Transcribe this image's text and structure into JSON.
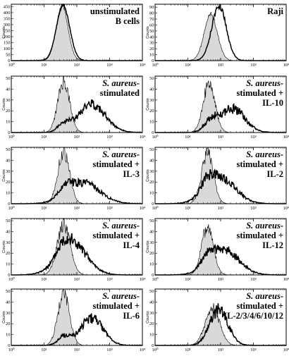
{
  "figure": {
    "y_axis_label": "Counts",
    "x_ticks": [
      "10⁰",
      "10¹",
      "10²",
      "10³",
      "10⁴"
    ],
    "colors": {
      "isotype_fill": "#d9d9d9",
      "line": "#000000",
      "background": "#ffffff"
    }
  },
  "chart_data": [
    {
      "type": "area",
      "panel": 1,
      "label_lines": [
        {
          "text": "unstimulated",
          "italic": false
        },
        {
          "text": "B cells",
          "italic": false
        }
      ],
      "y_ticks": [
        "0",
        "50",
        "100",
        "150",
        "200",
        "250",
        "300",
        "350",
        "400",
        "450"
      ],
      "ylim": [
        0,
        470
      ],
      "xlim": [
        0,
        4
      ],
      "x_scale": "log",
      "series": [
        {
          "role": "isotype-filled",
          "mu": 1.55,
          "sigma": 0.18,
          "peak": 460,
          "noise": 0.03
        },
        {
          "role": "stained-outline",
          "mu": 1.58,
          "sigma": 0.2,
          "peak": 465,
          "noise": 0.03
        }
      ]
    },
    {
      "type": "area",
      "panel": 2,
      "label_lines": [
        {
          "text": "Raji",
          "italic": false
        }
      ],
      "y_ticks": [
        "0",
        "10",
        "20",
        "30",
        "40",
        "50",
        "60",
        "70",
        "80",
        "90"
      ],
      "ylim": [
        0,
        95
      ],
      "xlim": [
        0,
        4
      ],
      "x_scale": "log",
      "series": [
        {
          "role": "isotype-filled",
          "mu": 1.7,
          "sigma": 0.2,
          "peak": 78,
          "noise": 0.06
        },
        {
          "role": "stained-outline",
          "mu": 1.95,
          "sigma": 0.22,
          "peak": 93,
          "noise": 0.06
        }
      ]
    },
    {
      "type": "area",
      "panel": 3,
      "label_lines": [
        {
          "text": "S. aureus-",
          "italic": true
        },
        {
          "text": "stimulated",
          "italic": false
        }
      ],
      "y_ticks": [
        "0",
        "10",
        "20",
        "30",
        "40",
        "50"
      ],
      "ylim": [
        0,
        52
      ],
      "xlim": [
        0,
        4
      ],
      "x_scale": "log",
      "series": [
        {
          "role": "isotype-filled",
          "mu": 1.6,
          "sigma": 0.18,
          "peak": 47,
          "noise": 0.15
        },
        {
          "role": "stained-outline",
          "mu": 2.45,
          "sigma": 0.42,
          "peak": 26,
          "noise": 0.18,
          "shoulder_mu": 1.6,
          "shoulder_sigma": 0.18,
          "shoulder_peak": 7
        }
      ]
    },
    {
      "type": "area",
      "panel": 4,
      "label_lines": [
        {
          "text": "S. aureus-",
          "italic": true
        },
        {
          "text": "stimulated +",
          "italic": false
        },
        {
          "text": "IL-10",
          "italic": false
        }
      ],
      "y_ticks": [
        "0",
        "10",
        "20",
        "30",
        "40",
        "50"
      ],
      "ylim": [
        0,
        52
      ],
      "xlim": [
        0,
        4
      ],
      "x_scale": "log",
      "series": [
        {
          "role": "isotype-filled",
          "mu": 1.65,
          "sigma": 0.18,
          "peak": 46,
          "noise": 0.15
        },
        {
          "role": "stained-outline",
          "mu": 2.35,
          "sigma": 0.38,
          "peak": 22,
          "noise": 0.22,
          "shoulder_mu": 1.7,
          "shoulder_sigma": 0.2,
          "shoulder_peak": 9
        }
      ]
    },
    {
      "type": "area",
      "panel": 5,
      "label_lines": [
        {
          "text": "S. aureus-",
          "italic": true
        },
        {
          "text": "stimulated +",
          "italic": false
        },
        {
          "text": "IL-3",
          "italic": false
        }
      ],
      "y_ticks": [
        "0",
        "10",
        "20",
        "30",
        "40",
        "50"
      ],
      "ylim": [
        0,
        52
      ],
      "xlim": [
        0,
        4
      ],
      "x_scale": "log",
      "series": [
        {
          "role": "isotype-filled",
          "mu": 1.6,
          "sigma": 0.18,
          "peak": 48,
          "noise": 0.15
        },
        {
          "role": "stained-outline",
          "mu": 2.2,
          "sigma": 0.5,
          "peak": 19,
          "noise": 0.2,
          "shoulder_mu": 1.65,
          "shoulder_sigma": 0.2,
          "shoulder_peak": 8
        }
      ]
    },
    {
      "type": "area",
      "panel": 6,
      "label_lines": [
        {
          "text": "S. aureus-",
          "italic": true
        },
        {
          "text": "stimulated +",
          "italic": false
        },
        {
          "text": "IL-2",
          "italic": false
        }
      ],
      "y_ticks": [
        "0",
        "10",
        "20",
        "30",
        "40",
        "50"
      ],
      "ylim": [
        0,
        52
      ],
      "xlim": [
        0,
        4
      ],
      "x_scale": "log",
      "series": [
        {
          "role": "isotype-filled",
          "mu": 1.6,
          "sigma": 0.18,
          "peak": 46,
          "noise": 0.15
        },
        {
          "role": "stained-outline",
          "mu": 2.0,
          "sigma": 0.45,
          "peak": 24,
          "noise": 0.2,
          "shoulder_mu": 1.6,
          "shoulder_sigma": 0.2,
          "shoulder_peak": 10
        }
      ]
    },
    {
      "type": "area",
      "panel": 7,
      "label_lines": [
        {
          "text": "S. aureus-",
          "italic": true
        },
        {
          "text": "stimulated +",
          "italic": false
        },
        {
          "text": "IL-4",
          "italic": false
        }
      ],
      "y_ticks": [
        "0",
        "10",
        "20",
        "30",
        "40",
        "50"
      ],
      "ylim": [
        0,
        52
      ],
      "xlim": [
        0,
        4
      ],
      "x_scale": "log",
      "series": [
        {
          "role": "isotype-filled",
          "mu": 1.6,
          "sigma": 0.2,
          "peak": 46,
          "noise": 0.15
        },
        {
          "role": "stained-outline",
          "mu": 1.85,
          "sigma": 0.45,
          "peak": 29,
          "noise": 0.2,
          "shoulder_mu": 1.6,
          "shoulder_sigma": 0.18,
          "shoulder_peak": 8
        }
      ]
    },
    {
      "type": "area",
      "panel": 8,
      "label_lines": [
        {
          "text": "S. aureus-",
          "italic": true
        },
        {
          "text": "stimulated +",
          "italic": false
        },
        {
          "text": "IL-12",
          "italic": false
        }
      ],
      "y_ticks": [
        "0",
        "10",
        "20",
        "30",
        "40",
        "50"
      ],
      "ylim": [
        0,
        52
      ],
      "xlim": [
        0,
        4
      ],
      "x_scale": "log",
      "series": [
        {
          "role": "isotype-filled",
          "mu": 1.6,
          "sigma": 0.18,
          "peak": 44,
          "noise": 0.15
        },
        {
          "role": "stained-outline",
          "mu": 2.1,
          "sigma": 0.45,
          "peak": 23,
          "noise": 0.2,
          "shoulder_mu": 1.6,
          "shoulder_sigma": 0.2,
          "shoulder_peak": 9
        }
      ]
    },
    {
      "type": "area",
      "panel": 9,
      "label_lines": [
        {
          "text": "S. aureus-",
          "italic": true
        },
        {
          "text": "stimulated +",
          "italic": false
        },
        {
          "text": "IL-6",
          "italic": false
        }
      ],
      "y_ticks": [
        "0",
        "10",
        "20",
        "30",
        "40",
        "50"
      ],
      "ylim": [
        0,
        52
      ],
      "xlim": [
        0,
        4
      ],
      "x_scale": "log",
      "series": [
        {
          "role": "isotype-filled",
          "mu": 1.6,
          "sigma": 0.18,
          "peak": 47,
          "noise": 0.15
        },
        {
          "role": "stained-outline",
          "mu": 2.45,
          "sigma": 0.35,
          "peak": 25,
          "noise": 0.2,
          "shoulder_mu": 1.6,
          "shoulder_sigma": 0.18,
          "shoulder_peak": 8
        }
      ]
    },
    {
      "type": "area",
      "panel": 10,
      "label_lines": [
        {
          "text": "S. aureus-",
          "italic": true
        },
        {
          "text": "stimulated +",
          "italic": false
        },
        {
          "text": "IL-2/3/4/6/10/12",
          "italic": false
        }
      ],
      "y_ticks": [
        "0",
        "10",
        "20",
        "30",
        "40",
        "50"
      ],
      "ylim": [
        0,
        52
      ],
      "xlim": [
        0,
        4
      ],
      "x_scale": "log",
      "series": [
        {
          "role": "isotype-filled",
          "mu": 1.75,
          "sigma": 0.22,
          "peak": 35,
          "noise": 0.15
        },
        {
          "role": "stained-outline",
          "mu": 1.95,
          "sigma": 0.28,
          "peak": 33,
          "noise": 0.18
        }
      ]
    }
  ]
}
